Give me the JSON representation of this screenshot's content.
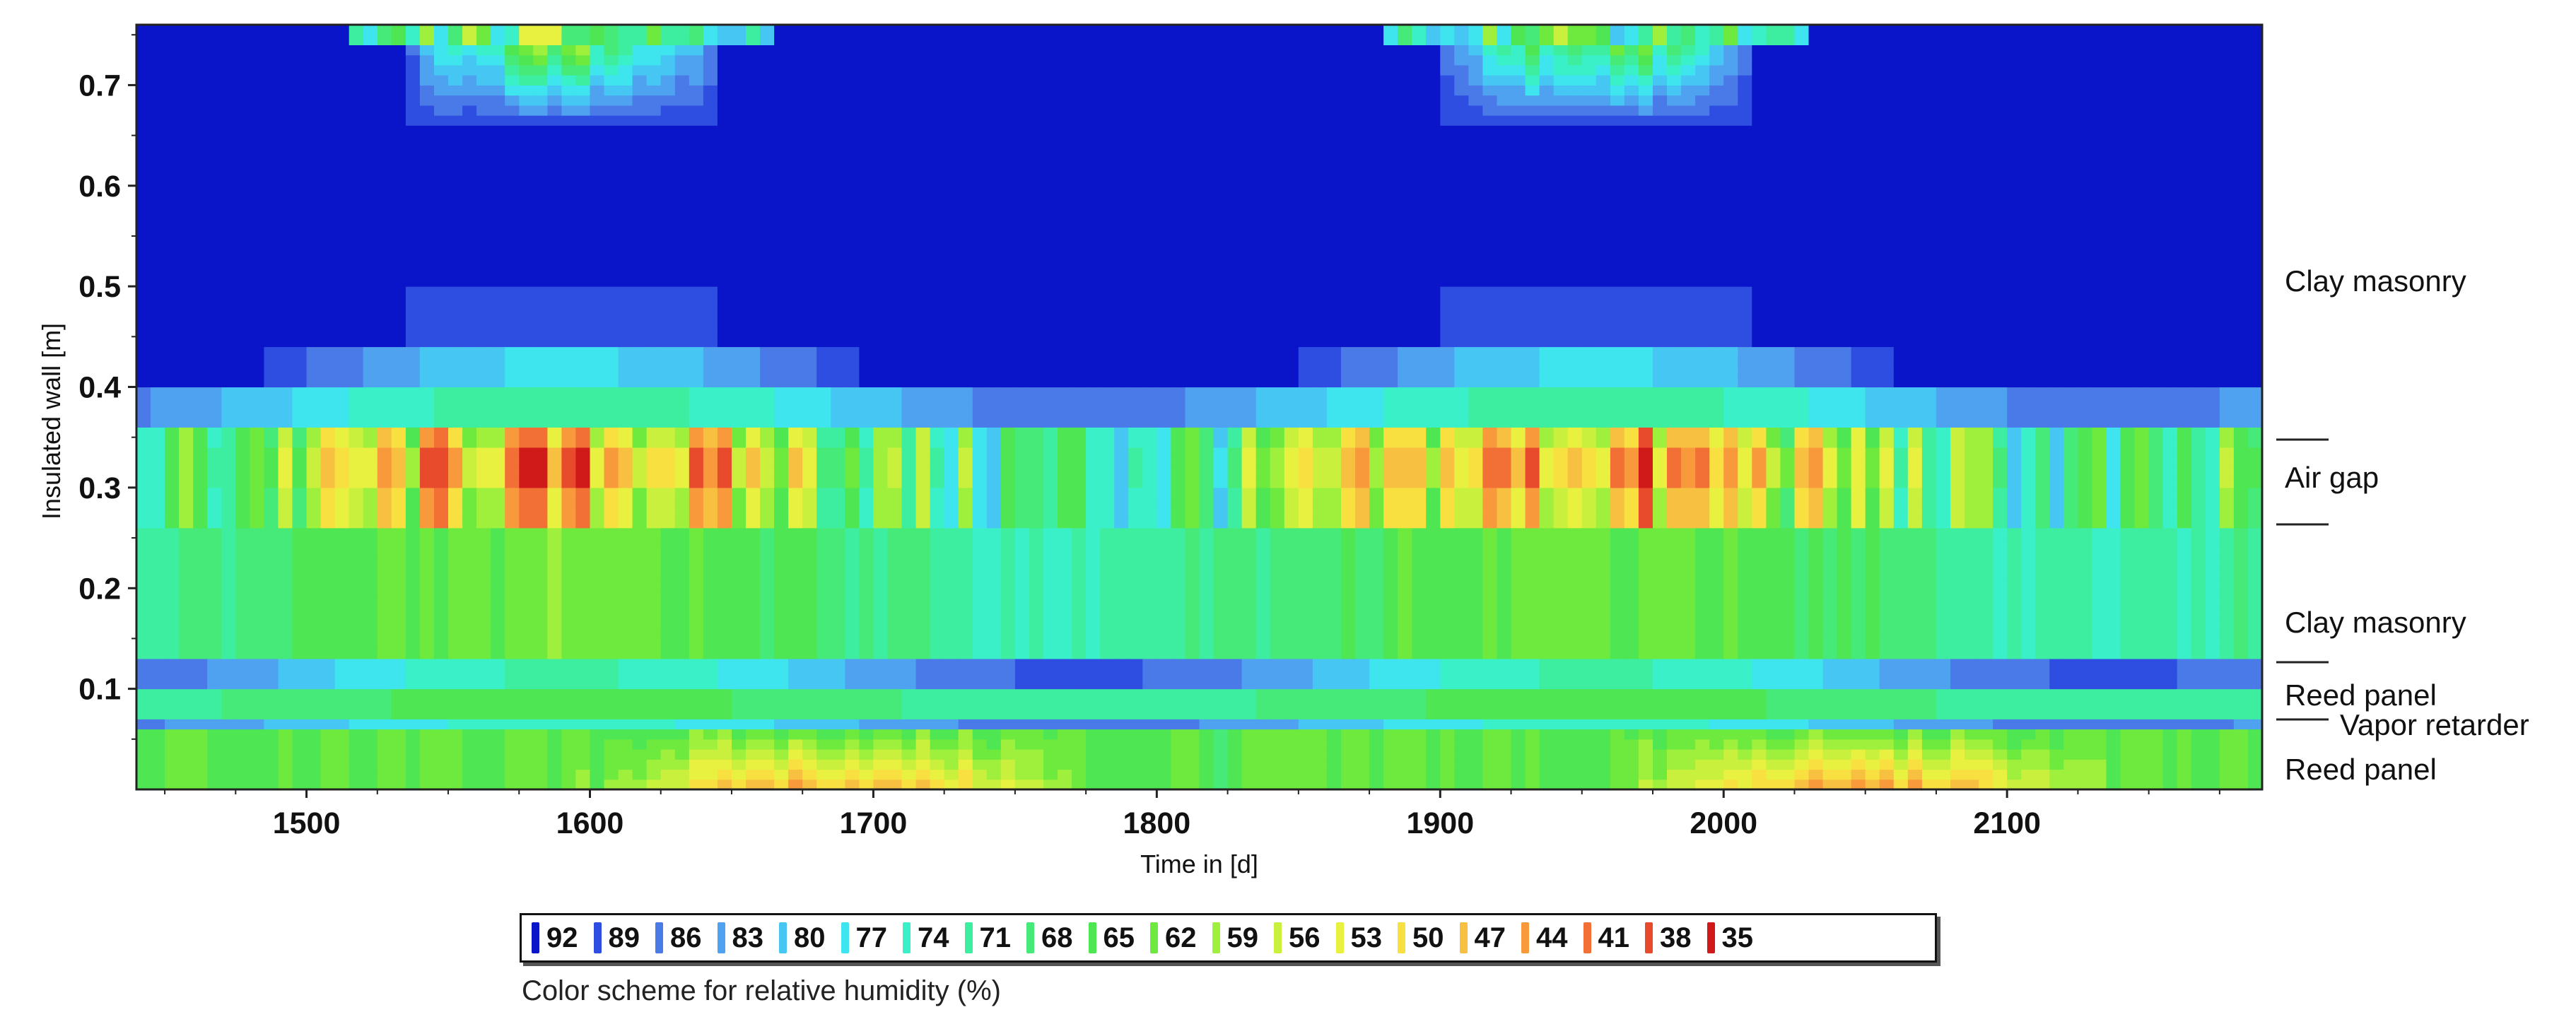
{
  "chart_data": {
    "type": "heatmap",
    "xlabel": "Time in [d]",
    "ylabel": "Insulated wall [m]",
    "xlim": [
      1440,
      2190
    ],
    "ylim": [
      0,
      0.76
    ],
    "x_ticks": [
      1500,
      1600,
      1700,
      1800,
      1900,
      2000,
      2100
    ],
    "y_ticks": [
      0.1,
      0.2,
      0.3,
      0.4,
      0.5,
      0.6,
      0.7
    ],
    "value_description": "Relative humidity (%) in each wall layer over time",
    "layers": [
      {
        "label": "Clay masonry",
        "y_from": 0.44,
        "y_to": 0.76
      },
      {
        "label": "Air gap",
        "y_from": 0.26,
        "y_to": 0.35
      },
      {
        "label": "Clay masonry",
        "y_from": 0.12,
        "y_to": 0.26
      },
      {
        "label": "Reed panel",
        "y_from": 0.07,
        "y_to": 0.12
      },
      {
        "label": "Vapor retarder",
        "y_from": 0.065,
        "y_to": 0.07
      },
      {
        "label": "Reed panel",
        "y_from": 0.0,
        "y_to": 0.065
      }
    ],
    "legend": {
      "caption": "Color scheme for relative humidity (%)",
      "levels": [
        {
          "value": "92",
          "color": "#0a14c8"
        },
        {
          "value": "89",
          "color": "#2d4ee0"
        },
        {
          "value": "86",
          "color": "#4a7ae8"
        },
        {
          "value": "83",
          "color": "#4fa2f0"
        },
        {
          "value": "80",
          "color": "#46c6f2"
        },
        {
          "value": "77",
          "color": "#3ee4ee"
        },
        {
          "value": "74",
          "color": "#3af0c8"
        },
        {
          "value": "71",
          "color": "#3eeeA0"
        },
        {
          "value": "68",
          "color": "#46ea78"
        },
        {
          "value": "65",
          "color": "#4ee652"
        },
        {
          "value": "62",
          "color": "#6eea3e"
        },
        {
          "value": "59",
          "color": "#9ef03c"
        },
        {
          "value": "56",
          "color": "#c8f03c"
        },
        {
          "value": "53",
          "color": "#e8f040"
        },
        {
          "value": "50",
          "color": "#f8e040"
        },
        {
          "value": "47",
          "color": "#f8c040"
        },
        {
          "value": "44",
          "color": "#f89a3c"
        },
        {
          "value": "41",
          "color": "#f27036"
        },
        {
          "value": "38",
          "color": "#e84a2c"
        },
        {
          "value": "35",
          "color": "#d01a1a"
        }
      ]
    }
  }
}
